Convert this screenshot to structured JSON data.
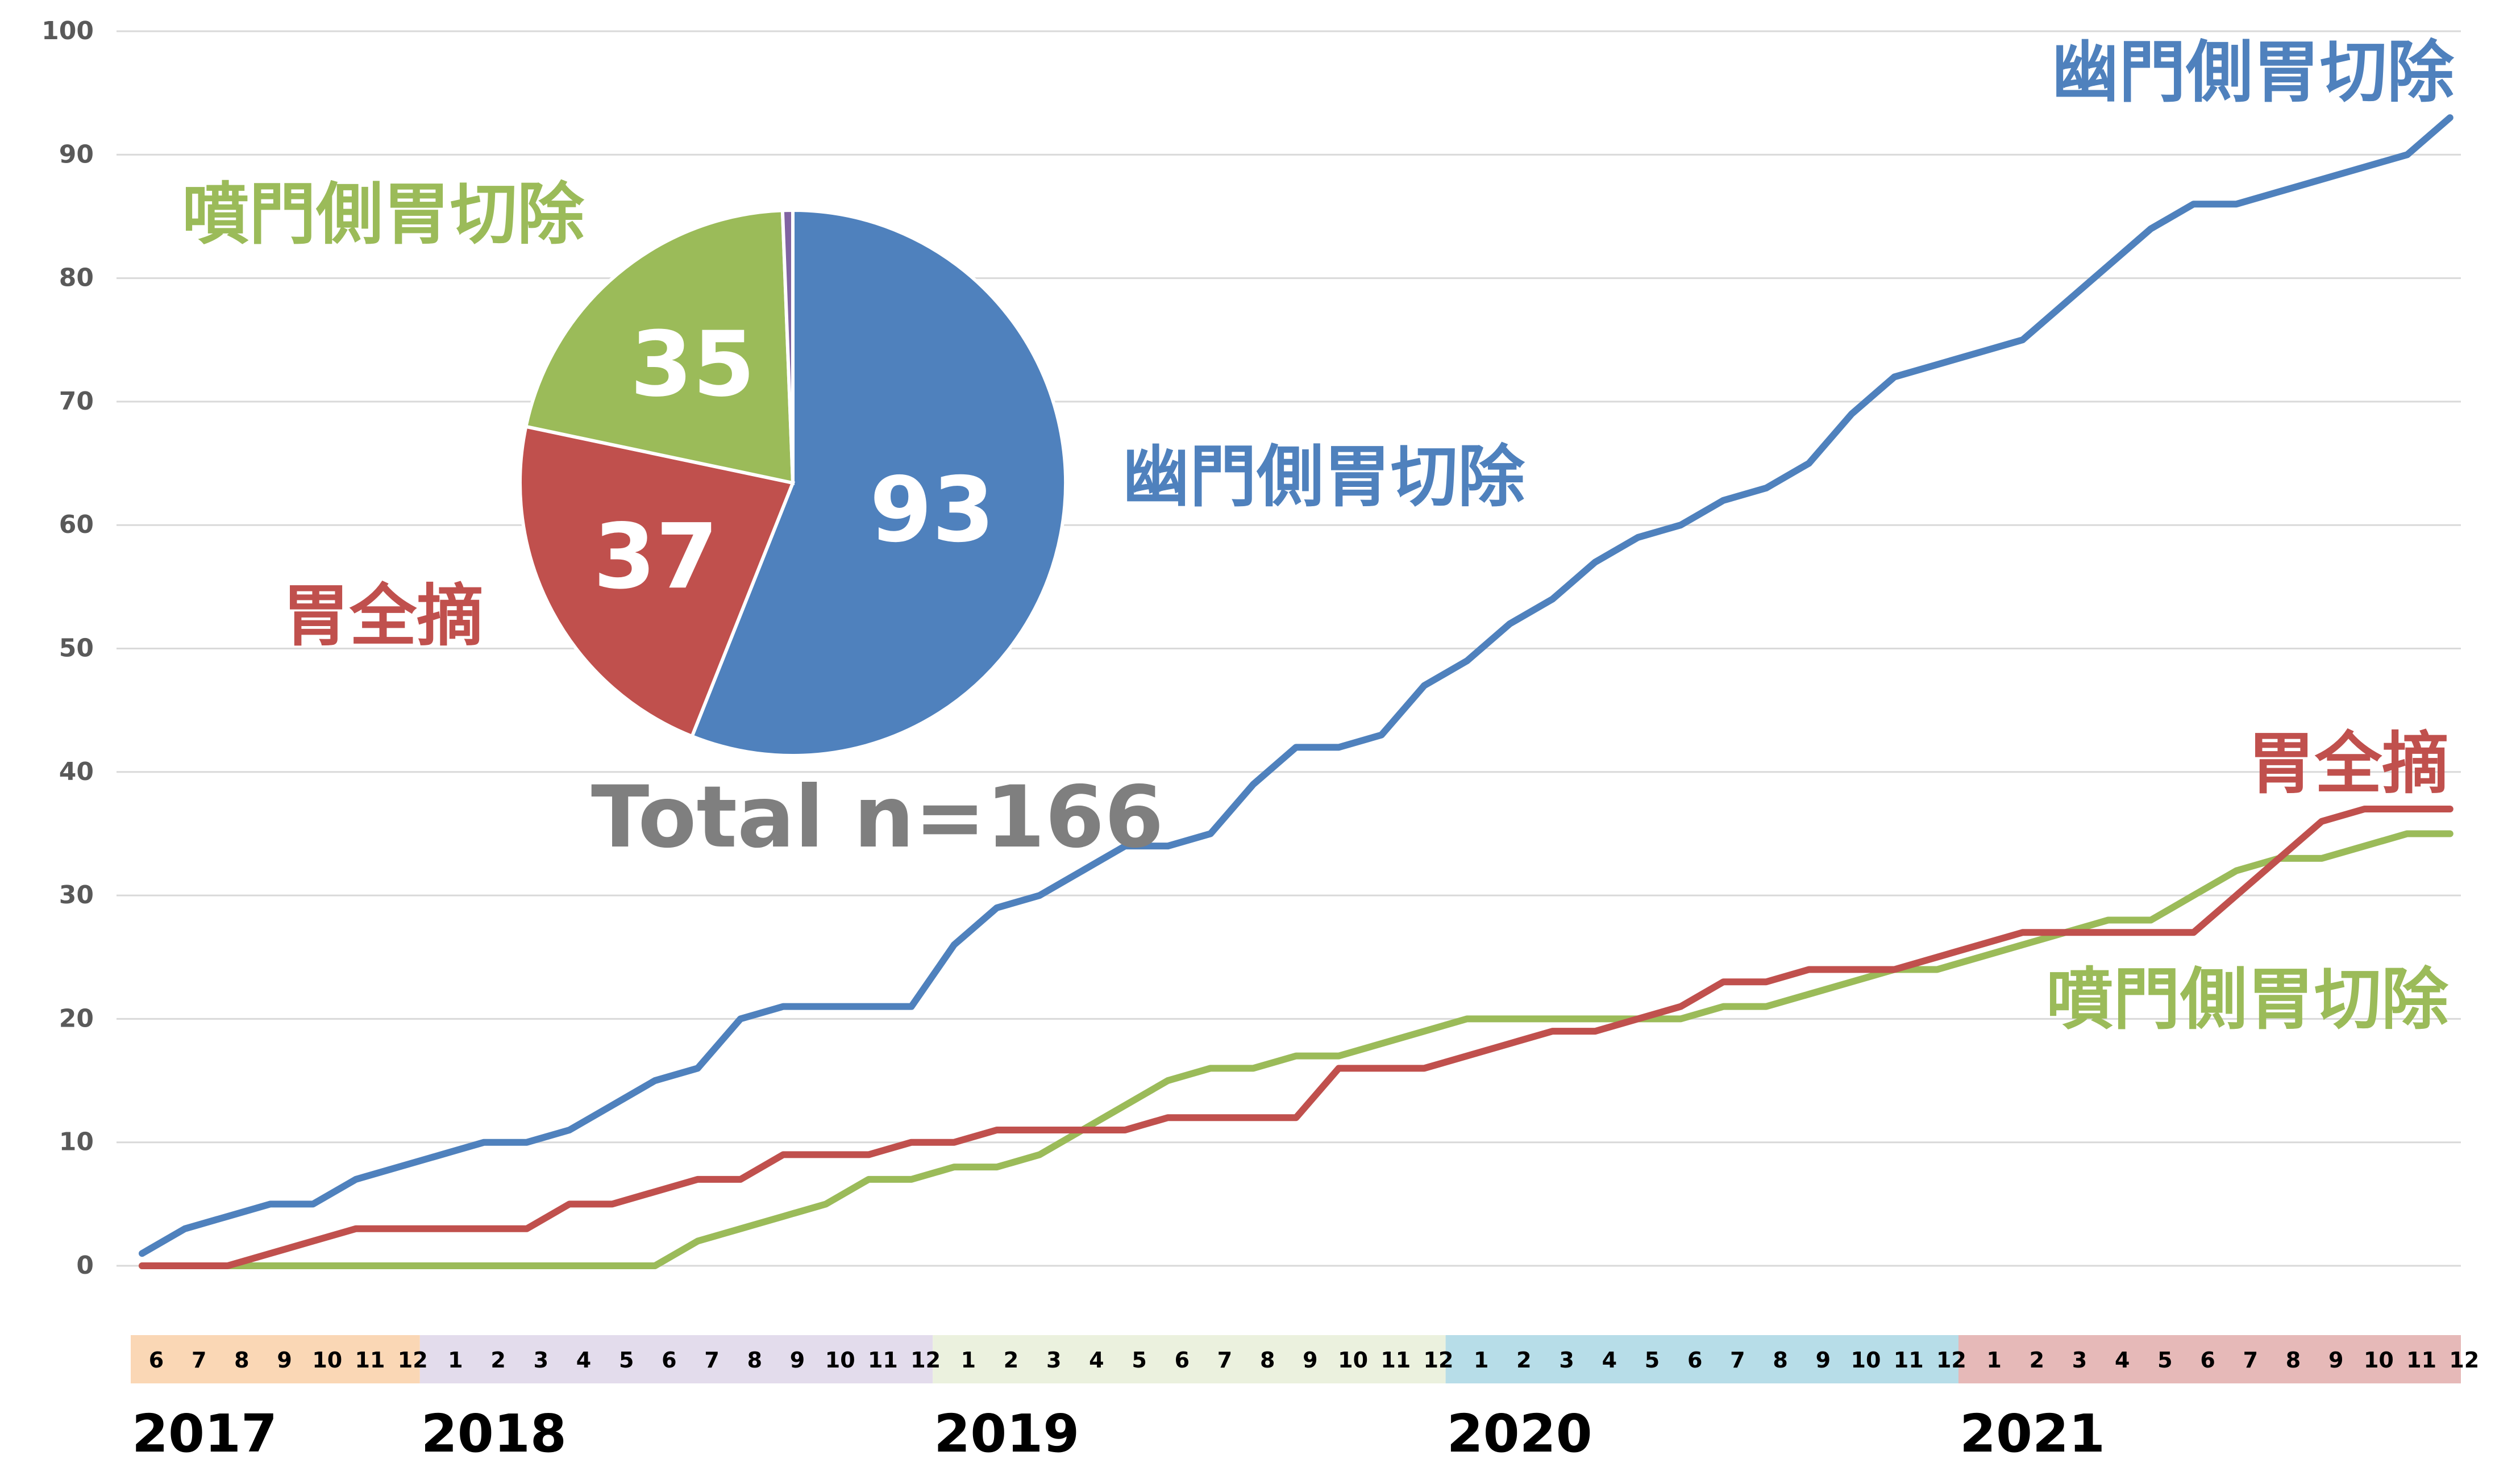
{
  "chart_data": [
    {
      "type": "line",
      "ylim": [
        0,
        100
      ],
      "y_ticks": [
        "0",
        "10",
        "20",
        "30",
        "40",
        "50",
        "60",
        "70",
        "80",
        "90",
        "100"
      ],
      "grid": true,
      "month_labels": [
        "6",
        "7",
        "8",
        "9",
        "10",
        "11",
        "12",
        "1",
        "2",
        "3",
        "4",
        "5",
        "6",
        "7",
        "8",
        "9",
        "10",
        "11",
        "12",
        "1",
        "2",
        "3",
        "4",
        "5",
        "6",
        "7",
        "8",
        "9",
        "10",
        "11",
        "12",
        "1",
        "2",
        "3",
        "4",
        "5",
        "6",
        "7",
        "8",
        "9",
        "10",
        "11",
        "12",
        "1",
        "2",
        "3",
        "4",
        "5",
        "6",
        "7",
        "8",
        "9",
        "10",
        "11",
        "12"
      ],
      "year_bands": [
        {
          "year": "2017",
          "start": 0,
          "count": 7,
          "color": "#fad7b5"
        },
        {
          "year": "2018",
          "start": 7,
          "count": 12,
          "color": "#e3dcec"
        },
        {
          "year": "2019",
          "start": 19,
          "count": 12,
          "color": "#ebf1de"
        },
        {
          "year": "2020",
          "start": 31,
          "count": 12,
          "color": "#b7dde8"
        },
        {
          "year": "2021",
          "start": 43,
          "count": 12,
          "color": "#e6b9b8"
        }
      ],
      "series": [
        {
          "name": "幽門側胃切除",
          "color": "#4f81bd",
          "values": [
            1,
            3,
            4,
            5,
            5,
            7,
            8,
            9,
            10,
            10,
            11,
            13,
            15,
            16,
            20,
            21,
            21,
            21,
            21,
            26,
            29,
            30,
            32,
            34,
            34,
            35,
            39,
            42,
            42,
            43,
            47,
            49,
            52,
            54,
            57,
            59,
            60,
            62,
            63,
            65,
            69,
            72,
            73,
            74,
            75,
            78,
            81,
            84,
            86,
            86,
            87,
            88,
            89,
            90,
            93
          ]
        },
        {
          "name": "胃全摘",
          "color": "#c0504d",
          "values": [
            0,
            0,
            0,
            1,
            2,
            3,
            3,
            3,
            3,
            3,
            5,
            5,
            6,
            7,
            7,
            9,
            9,
            9,
            10,
            10,
            11,
            11,
            11,
            11,
            12,
            12,
            12,
            12,
            16,
            16,
            16,
            17,
            18,
            19,
            19,
            20,
            21,
            23,
            23,
            24,
            24,
            24,
            25,
            26,
            27,
            27,
            27,
            27,
            27,
            30,
            33,
            36,
            37,
            37,
            37
          ]
        },
        {
          "name": "噴門側胃切除",
          "color": "#9bbb59",
          "values": [
            0,
            0,
            0,
            0,
            0,
            0,
            0,
            0,
            0,
            0,
            0,
            0,
            0,
            2,
            3,
            4,
            5,
            7,
            7,
            8,
            8,
            9,
            11,
            13,
            15,
            16,
            16,
            17,
            17,
            18,
            19,
            20,
            20,
            20,
            20,
            20,
            20,
            21,
            21,
            22,
            23,
            24,
            24,
            25,
            26,
            27,
            28,
            28,
            30,
            32,
            33,
            33,
            34,
            35,
            35
          ]
        }
      ]
    },
    {
      "type": "pie",
      "title": "Total n=166",
      "slices": [
        {
          "label": "幽門側胃切除",
          "value": 93,
          "color": "#4f81bd",
          "value_label": "93"
        },
        {
          "label": "胃全摘",
          "value": 37,
          "color": "#c0504d",
          "value_label": "37"
        },
        {
          "label": "噴門側胃切除",
          "value": 35,
          "color": "#9bbb59",
          "value_label": "35"
        },
        {
          "label": "",
          "value": 1,
          "color": "#8064a2",
          "value_label": ""
        }
      ]
    }
  ]
}
